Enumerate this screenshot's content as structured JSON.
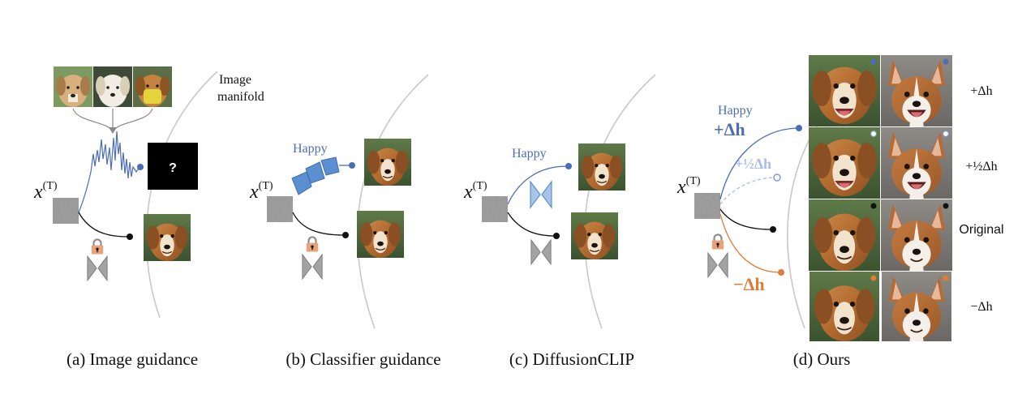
{
  "colors": {
    "blue": "#4a6db5",
    "light_blue": "#a9bde0",
    "orange": "#e07b39",
    "black": "#111111",
    "manifold": "#c8c8c8",
    "lock_orange": "#e9a17a",
    "unet_gray": "#a3a3a3",
    "unet_blue": "#5b8fd1"
  },
  "panels": {
    "a": {
      "caption": "(a) Image guidance",
      "manifold_label_1": "Image",
      "manifold_label_2": "manifold",
      "xT_base": "x",
      "xT_sup": "(T)",
      "unknown_mark": "?"
    },
    "b": {
      "caption": "(b) Classifier guidance",
      "xT_base": "x",
      "xT_sup": "(T)",
      "attribute": "Happy"
    },
    "c": {
      "caption": "(c) DiffusionCLIP",
      "xT_base": "x",
      "xT_sup": "(T)",
      "attribute": "Happy"
    },
    "d": {
      "caption": "(d) Ours",
      "xT_base": "x",
      "xT_sup": "(T)",
      "attribute": "Happy",
      "plus_label": "+Δh",
      "half_label": "+½Δh",
      "minus_label": "−Δh",
      "rows": [
        "+Δh",
        "+½Δh",
        "Original",
        "−Δh"
      ]
    }
  },
  "icons": [
    "dog-photo",
    "noise-square",
    "padlock-icon",
    "unet-icon",
    "classifier-icon"
  ]
}
